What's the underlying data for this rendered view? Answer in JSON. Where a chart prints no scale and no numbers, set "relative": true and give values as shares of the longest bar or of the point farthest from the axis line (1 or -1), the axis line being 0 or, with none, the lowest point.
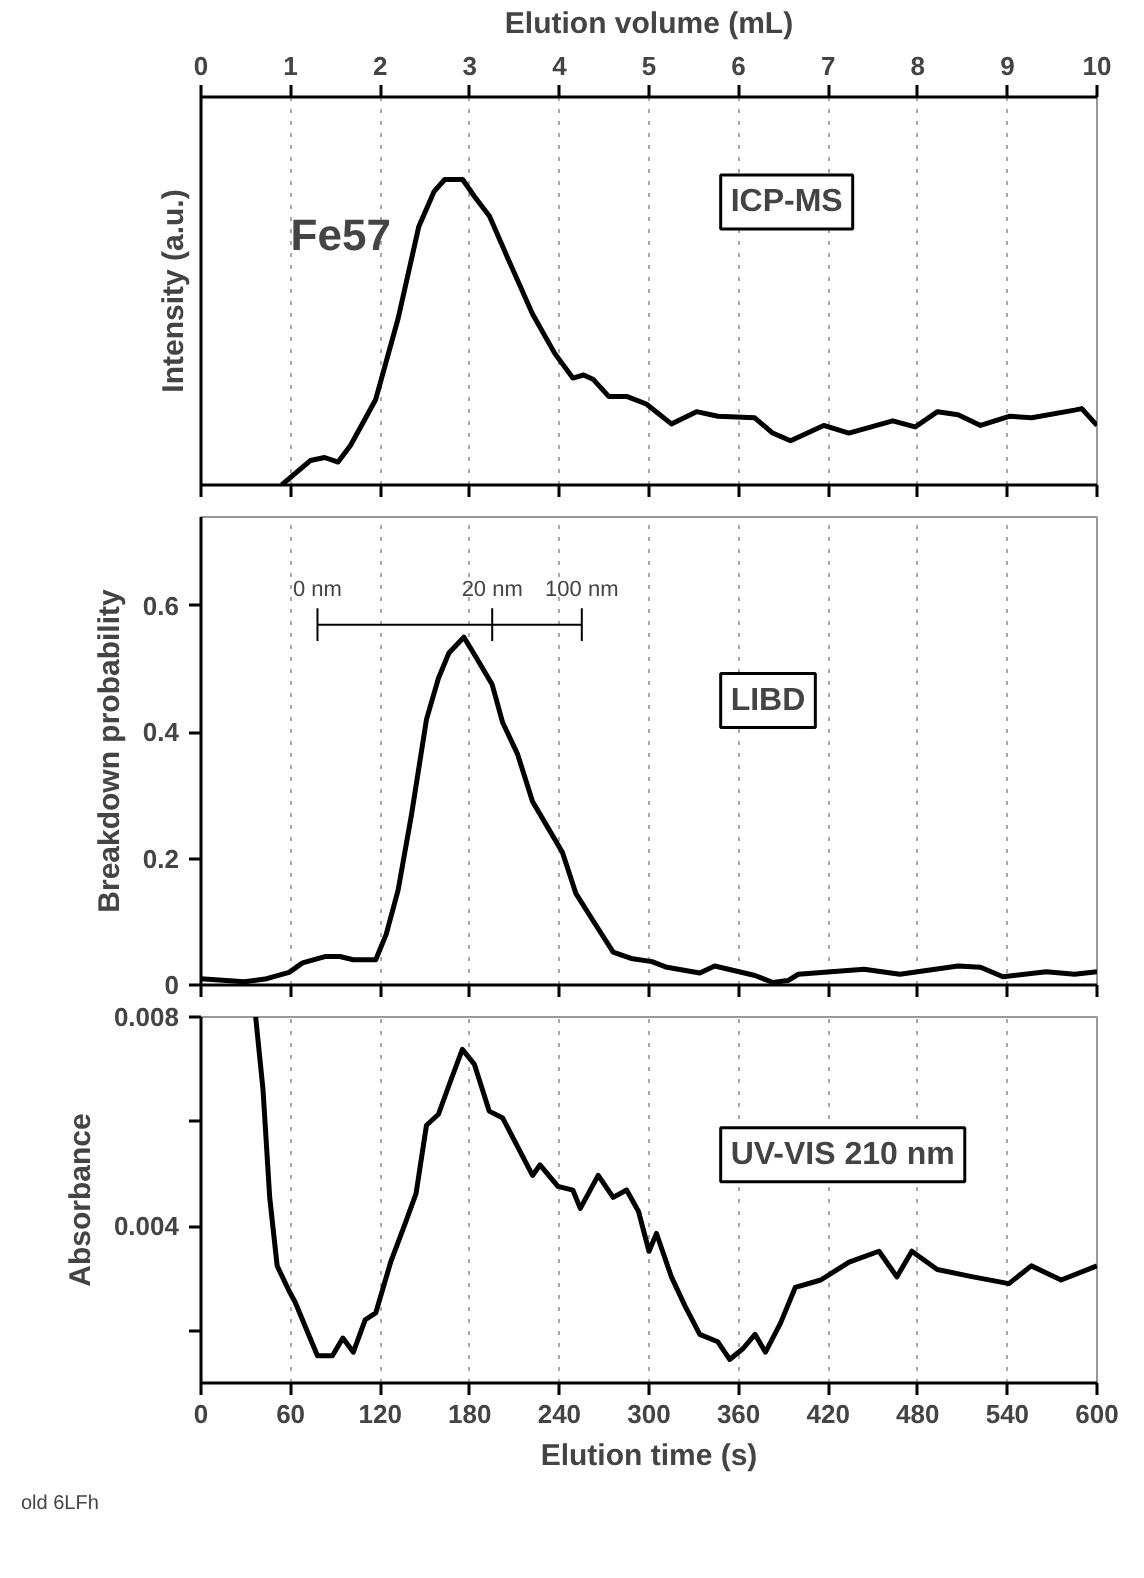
{
  "chart_data": [
    {
      "type": "line",
      "relative": true,
      "tick_labels": "x",
      "ylabel": "Intensity (a.u.)",
      "xlabel": "Elution volume (mL)",
      "xlim": [
        0,
        10
      ],
      "xticks": [
        0,
        1,
        2,
        3,
        4,
        5,
        6,
        7,
        8,
        9,
        10
      ],
      "grid": "x",
      "line_style": "solid",
      "annotations": [
        "Fe57",
        "ICP-MS"
      ],
      "series": [
        {
          "color": "#000000",
          "x": [
            0.9,
            1.22,
            1.38,
            1.53,
            1.67,
            1.95,
            2.2,
            2.43,
            2.6,
            2.72,
            2.92,
            3.05,
            3.22,
            3.42,
            3.7,
            3.95,
            4.15,
            4.27,
            4.38,
            4.55,
            4.75,
            4.97,
            5.25,
            5.53,
            5.77,
            6.18,
            6.38,
            6.58,
            6.95,
            7.23,
            7.72,
            7.97,
            8.22,
            8.45,
            8.7,
            9.02,
            9.27,
            9.75,
            9.83,
            10
          ],
          "values": [
            0,
            0.08,
            0.09,
            0.075,
            0.13,
            0.28,
            0.545,
            0.845,
            0.96,
            1.0,
            1.0,
            0.945,
            0.88,
            0.745,
            0.56,
            0.43,
            0.35,
            0.36,
            0.345,
            0.29,
            0.29,
            0.265,
            0.2,
            0.24,
            0.225,
            0.22,
            0.17,
            0.145,
            0.195,
            0.17,
            0.21,
            0.19,
            0.24,
            0.23,
            0.195,
            0.225,
            0.22,
            0.245,
            0.25,
            0.195
          ]
        }
      ]
    },
    {
      "type": "line",
      "ylabel": "Breakdown probability",
      "tick_labels": "y",
      "ylim": [
        0,
        0.74
      ],
      "yticks": [
        0,
        0.2,
        0.4,
        0.6
      ],
      "xlim": [
        0,
        600
      ],
      "xticks": [
        0,
        60,
        120,
        180,
        240,
        300,
        360,
        420,
        480,
        540,
        600
      ],
      "grid": "x",
      "line_style": "solid",
      "annotations": [
        "LIBD",
        "0 nm",
        "20 nm",
        "100 nm"
      ],
      "series": [
        {
          "color": "#000000",
          "x": [
            0,
            29,
            44,
            59,
            68,
            83,
            93,
            102,
            117,
            124,
            132,
            141,
            151,
            159,
            166,
            176,
            185,
            195,
            202,
            212,
            222,
            232,
            242,
            251,
            263,
            276,
            288,
            302,
            312,
            334,
            344,
            371,
            383,
            393,
            400,
            444,
            468,
            507,
            522,
            537,
            566,
            585,
            600
          ],
          "values": [
            0.01,
            0.005,
            0.01,
            0.02,
            0.035,
            0.045,
            0.045,
            0.04,
            0.04,
            0.08,
            0.15,
            0.27,
            0.42,
            0.485,
            0.525,
            0.55,
            0.515,
            0.475,
            0.415,
            0.365,
            0.29,
            0.25,
            0.21,
            0.145,
            0.1,
            0.052,
            0.042,
            0.037,
            0.028,
            0.019,
            0.03,
            0.015,
            0.004,
            0.007,
            0.017,
            0.025,
            0.017,
            0.03,
            0.028,
            0.013,
            0.021,
            0.017,
            0.021
          ]
        }
      ]
    },
    {
      "type": "line",
      "ylabel": "Absorbance",
      "xlabel": "Elution time (s)",
      "ylim": [
        0.001,
        0.008
      ],
      "yticks": [
        {
          "value": 0.002,
          "label": null
        },
        0.004,
        {
          "value": 0.006,
          "label": null
        },
        0.008
      ],
      "xlim": [
        0,
        600
      ],
      "xticks": [
        0,
        60,
        120,
        180,
        240,
        300,
        360,
        420,
        480,
        540,
        600
      ],
      "grid": "x",
      "line_style": "solid",
      "annotations": [
        "UV-VIS 210 nm",
        "old 6LFh"
      ],
      "series": [
        {
          "color": "#000000",
          "x": [
            36.6,
            41.5,
            46,
            51,
            59,
            63,
            71,
            78,
            88,
            95,
            102,
            110,
            117,
            127,
            137,
            144,
            151,
            159,
            166,
            175,
            183,
            193,
            202,
            212,
            222,
            227,
            239,
            249,
            254,
            266,
            276,
            285,
            293,
            300,
            305,
            315,
            324,
            334,
            346,
            354,
            363,
            371,
            378,
            388,
            398,
            415,
            434,
            454,
            466,
            476,
            493,
            517,
            541,
            556,
            576,
            600
          ],
          "values": [
            0.008,
            0.00662,
            0.00455,
            0.00324,
            0.00276,
            0.00255,
            0.002,
            0.00152,
            0.00152,
            0.00186,
            0.00159,
            0.00221,
            0.00234,
            0.00331,
            0.00407,
            0.00462,
            0.00593,
            0.00614,
            0.00669,
            0.00738,
            0.0071,
            0.0062,
            0.00607,
            0.00552,
            0.00497,
            0.00517,
            0.00476,
            0.00469,
            0.00434,
            0.00497,
            0.00455,
            0.00469,
            0.00428,
            0.00352,
            0.00386,
            0.00303,
            0.00248,
            0.00193,
            0.00179,
            0.00145,
            0.00166,
            0.00193,
            0.00159,
            0.00214,
            0.00283,
            0.00297,
            0.00331,
            0.00352,
            0.00303,
            0.00352,
            0.00317,
            0.00303,
            0.0029,
            0.00324,
            0.00297,
            0.00324
          ]
        }
      ]
    }
  ]
}
